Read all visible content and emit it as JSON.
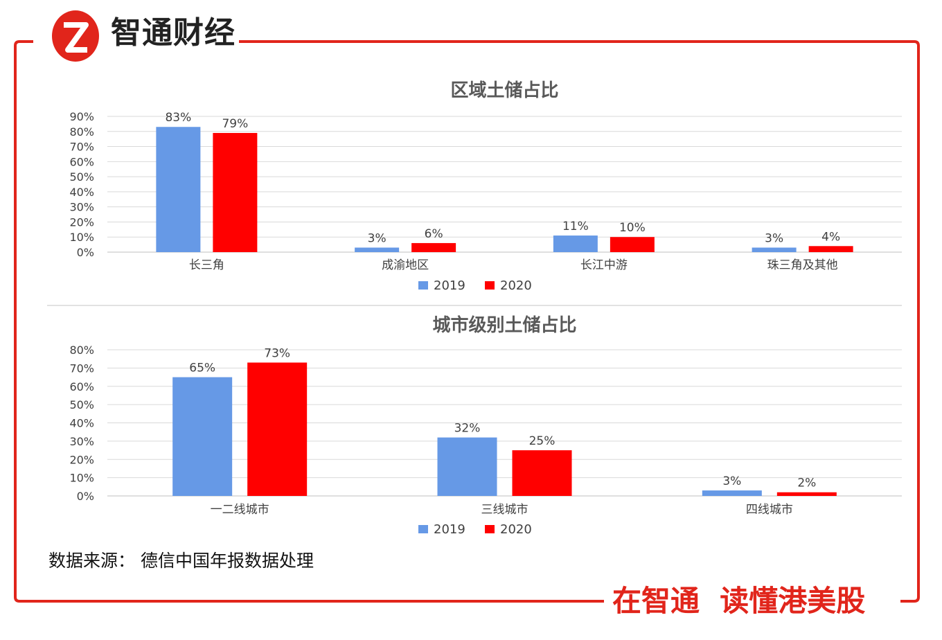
{
  "brand": {
    "name": "智通财经",
    "logo_letter": "Z"
  },
  "slogan": {
    "left": "在智通",
    "right": "读懂港美股"
  },
  "source_note": "数据来源： 德信中国年报数据处理",
  "colors": {
    "series_2019": "#6699e6",
    "series_2020": "#ff0000",
    "frame": "#e1251b",
    "grid": "#d9d9d9"
  },
  "chart_data": [
    {
      "type": "bar",
      "title": "区域土储占比",
      "categories": [
        "长三角",
        "成渝地区",
        "长江中游",
        "珠三角及其他"
      ],
      "series": [
        {
          "name": "2019",
          "values": [
            83,
            3,
            11,
            3
          ],
          "labels": [
            "83%",
            "3%",
            "11%",
            "3%"
          ]
        },
        {
          "name": "2020",
          "values": [
            79,
            6,
            10,
            4
          ],
          "labels": [
            "79%",
            "6%",
            "10%",
            "4%"
          ]
        }
      ],
      "ylim": [
        0,
        90
      ],
      "yticks": [
        "0%",
        "10%",
        "20%",
        "30%",
        "40%",
        "50%",
        "60%",
        "70%",
        "80%",
        "90%"
      ],
      "grid": true,
      "legend": "bottom"
    },
    {
      "type": "bar",
      "title": "城市级别土储占比",
      "categories": [
        "一二线城市",
        "三线城市",
        "四线城市"
      ],
      "series": [
        {
          "name": "2019",
          "values": [
            65,
            32,
            3
          ],
          "labels": [
            "65%",
            "32%",
            "3%"
          ]
        },
        {
          "name": "2020",
          "values": [
            73,
            25,
            2
          ],
          "labels": [
            "73%",
            "25%",
            "2%"
          ]
        }
      ],
      "ylim": [
        0,
        80
      ],
      "yticks": [
        "0%",
        "10%",
        "20%",
        "30%",
        "40%",
        "50%",
        "60%",
        "70%",
        "80%"
      ],
      "grid": true,
      "legend": "bottom"
    }
  ]
}
